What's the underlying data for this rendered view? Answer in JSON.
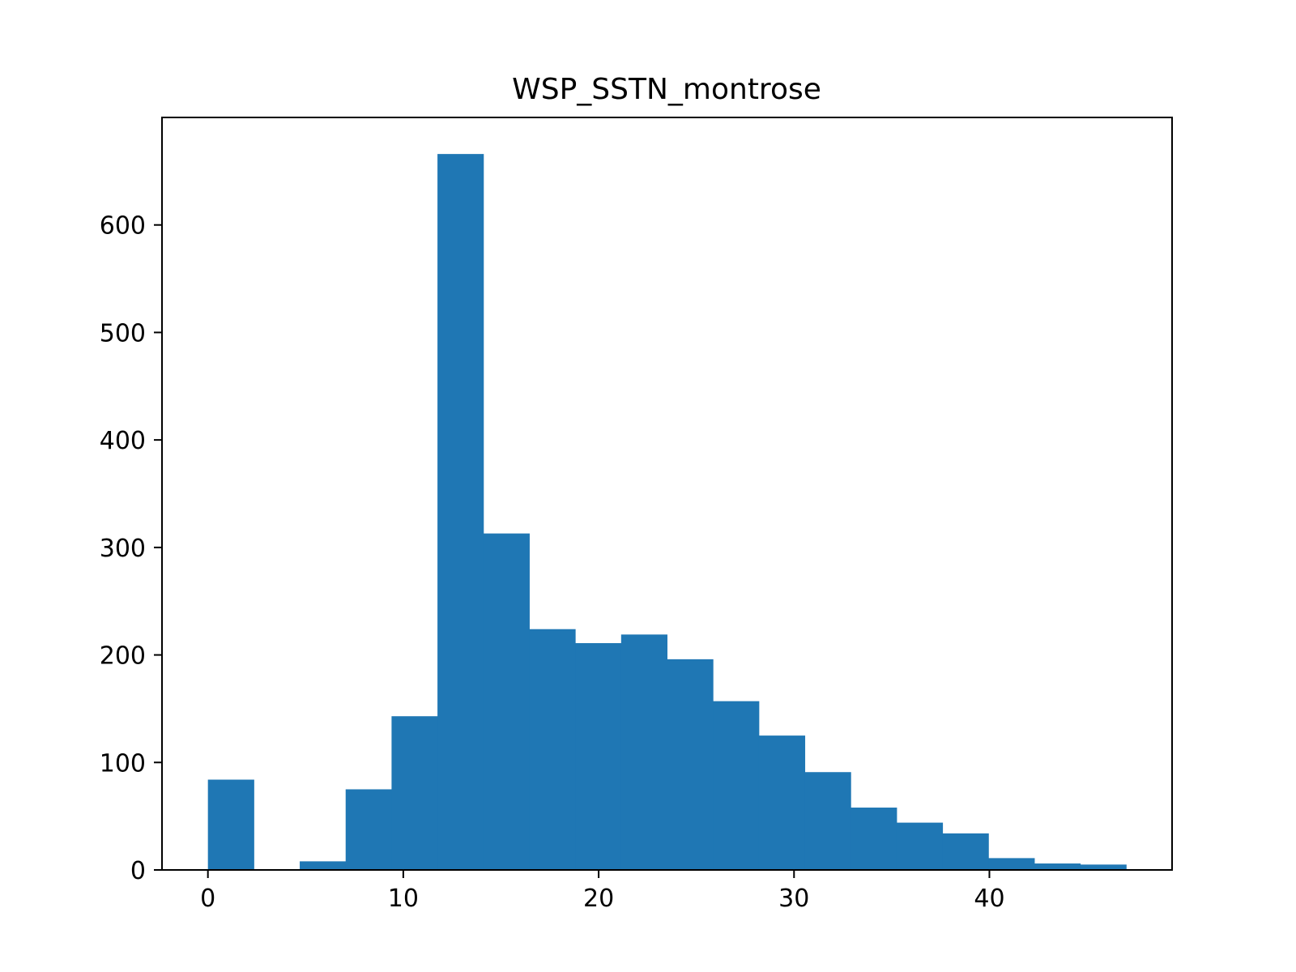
{
  "chart_data": {
    "type": "bar",
    "title": "WSP_SSTN_montrose",
    "xlabel": "",
    "ylabel": "",
    "grid": false,
    "legend": "none",
    "bar_color": "#1f77b4",
    "bin_start": 0,
    "bin_width": 2.35,
    "values": [
      84,
      0,
      8,
      75,
      143,
      666,
      313,
      224,
      211,
      219,
      196,
      157,
      125,
      91,
      58,
      44,
      34,
      11,
      6,
      5
    ],
    "xlim": [
      -2.35,
      49.35
    ],
    "ylim": [
      0,
      700
    ],
    "xticks": [
      0,
      10,
      20,
      30,
      40
    ],
    "xtick_labels": [
      "0",
      "10",
      "20",
      "30",
      "40"
    ],
    "yticks": [
      0,
      100,
      200,
      300,
      400,
      500,
      600
    ],
    "ytick_labels": [
      "0",
      "100",
      "200",
      "300",
      "400",
      "500",
      "600"
    ]
  }
}
